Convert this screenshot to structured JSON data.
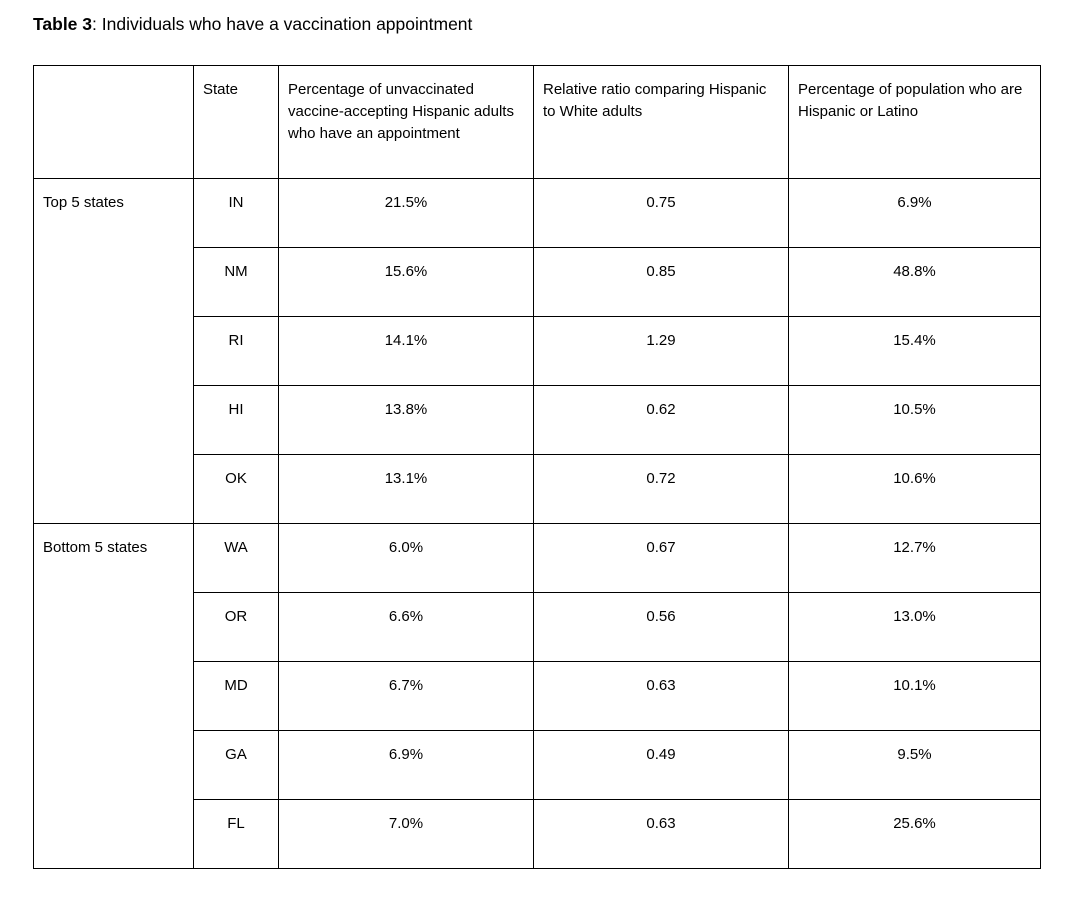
{
  "title": {
    "label": "Table 3",
    "text": ": Individuals who have a vaccination appointment"
  },
  "table": {
    "headers": [
      "",
      "State",
      "Percentage of unvaccinated vaccine-accepting Hispanic adults who have an appointment",
      "Relative ratio comparing Hispanic to White adults",
      "Percentage of population who are Hispanic or Latino"
    ],
    "groups": [
      {
        "label": "Top 5 states",
        "rows": [
          [
            "IN",
            "21.5%",
            "0.75",
            "6.9%"
          ],
          [
            "NM",
            "15.6%",
            "0.85",
            "48.8%"
          ],
          [
            "RI",
            "14.1%",
            "1.29",
            "15.4%"
          ],
          [
            "HI",
            "13.8%",
            "0.62",
            "10.5%"
          ],
          [
            "OK",
            "13.1%",
            "0.72",
            "10.6%"
          ]
        ]
      },
      {
        "label": "Bottom 5 states",
        "rows": [
          [
            "WA",
            "6.0%",
            "0.67",
            "12.7%"
          ],
          [
            "OR",
            "6.6%",
            "0.56",
            "13.0%"
          ],
          [
            "MD",
            "6.7%",
            "0.63",
            "10.1%"
          ],
          [
            "GA",
            "6.9%",
            "0.49",
            "9.5%"
          ],
          [
            "FL",
            "7.0%",
            "0.63",
            "25.6%"
          ]
        ]
      }
    ]
  }
}
